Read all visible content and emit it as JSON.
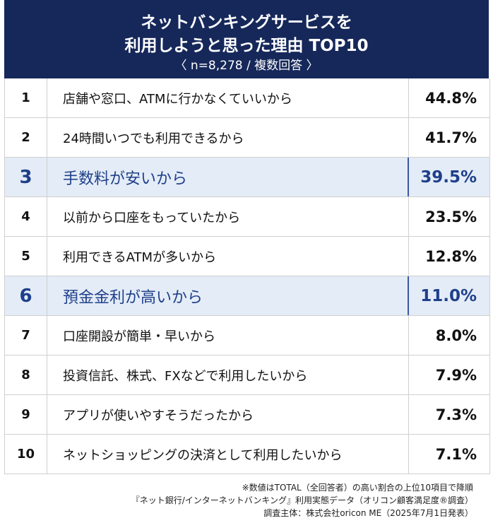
{
  "header": {
    "title_line1": "ネットバンキングサービスを",
    "title_line2": "利用しようと思った理由 TOP10",
    "subtitle": "〈 n=8,278 / 複数回答 〉"
  },
  "chart_data": {
    "type": "table",
    "rows": [
      {
        "rank": "1",
        "reason": "店舗や窓口、ATMに行かなくていいから",
        "percent": "44.8%",
        "value": 44.8,
        "highlight": false
      },
      {
        "rank": "2",
        "reason": "24時間いつでも利用できるから",
        "percent": "41.7%",
        "value": 41.7,
        "highlight": false
      },
      {
        "rank": "3",
        "reason": "手数料が安いから",
        "percent": "39.5%",
        "value": 39.5,
        "highlight": true
      },
      {
        "rank": "4",
        "reason": "以前から口座をもっていたから",
        "percent": "23.5%",
        "value": 23.5,
        "highlight": false
      },
      {
        "rank": "5",
        "reason": "利用できるATMが多いから",
        "percent": "12.8%",
        "value": 12.8,
        "highlight": false
      },
      {
        "rank": "6",
        "reason": "預金金利が高いから",
        "percent": "11.0%",
        "value": 11.0,
        "highlight": true
      },
      {
        "rank": "7",
        "reason": "口座開設が簡単・早いから",
        "percent": "8.0%",
        "value": 8.0,
        "highlight": false
      },
      {
        "rank": "8",
        "reason": "投資信託、株式、FXなどで利用したいから",
        "percent": "7.9%",
        "value": 7.9,
        "highlight": false
      },
      {
        "rank": "9",
        "reason": "アプリが使いやすそうだったから",
        "percent": "7.3%",
        "value": 7.3,
        "highlight": false
      },
      {
        "rank": "10",
        "reason": "ネットショッピングの決済として利用したいから",
        "percent": "7.1%",
        "value": 7.1,
        "highlight": false
      }
    ]
  },
  "notes": {
    "line1": "※数値はTOTAL（全回答者）の高い割合の上位10項目で降順",
    "line2": "『ネット銀行/インターネットバンキング』利用実態データ（オリコン顧客満足度®調査）",
    "line3": "調査主体：株式会社oricon ME（2025年7月1日発表）"
  },
  "colors": {
    "header_bg": "#16285a",
    "highlight_bg": "#e4ecf7",
    "highlight_text": "#1e3f8a"
  }
}
